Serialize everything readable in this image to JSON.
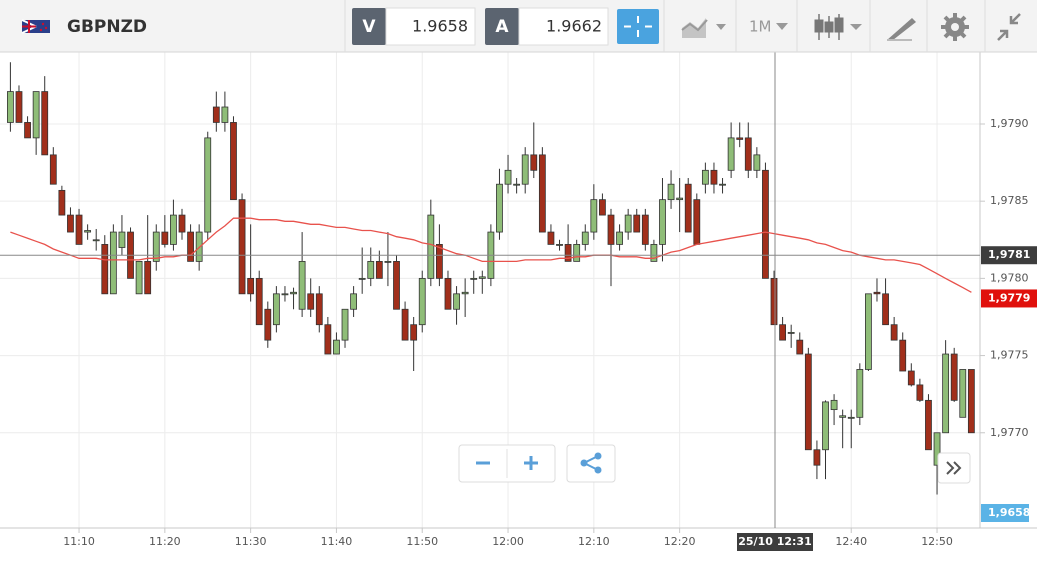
{
  "toolbar": {
    "symbol": "GBPNZD",
    "bid_label": "V",
    "bid": 1.9658,
    "ask_label": "A",
    "ask": 1.9662,
    "timeframe": "1M"
  },
  "chart_data": {
    "type": "candlestick",
    "categories": [
      null,
      null,
      null,
      null,
      null,
      null,
      null,
      null,
      "11:10",
      null,
      null,
      null,
      null,
      null,
      null,
      null,
      null,
      null,
      "11:20",
      null,
      null,
      null,
      null,
      null,
      null,
      null,
      null,
      null,
      "11:30",
      null,
      null,
      null,
      null,
      null,
      null,
      null,
      null,
      null,
      "11:40",
      null,
      null,
      null,
      null,
      null,
      null,
      null,
      null,
      null,
      "11:50",
      null,
      null,
      null,
      null,
      null,
      null,
      null,
      null,
      null,
      "12:00",
      null,
      null,
      null,
      null,
      null,
      null,
      null,
      null,
      null,
      "12:10",
      null,
      null,
      null,
      null,
      null,
      null,
      null,
      null,
      null,
      "12:20",
      null,
      null,
      null,
      null,
      null,
      null,
      null,
      null,
      null,
      null,
      null,
      null,
      null,
      null,
      null,
      null,
      null,
      null,
      null,
      "12:40",
      null,
      null,
      null,
      null,
      null,
      null,
      null,
      null,
      null,
      "12:50",
      null,
      null,
      null,
      null
    ],
    "open": [
      1.97901,
      1.97921,
      1.97901,
      1.97891,
      1.97921,
      1.9788,
      1.97857,
      1.97841,
      1.97841,
      1.9783,
      1.97825,
      1.97822,
      1.9779,
      1.9782,
      1.9783,
      1.9779,
      1.97811,
      1.97811,
      1.9783,
      1.97822,
      1.97841,
      1.9783,
      1.97811,
      1.9783,
      1.97911,
      1.97901,
      1.97901,
      1.97851,
      1.978,
      1.978,
      1.9778,
      1.9777,
      1.9779,
      1.9779,
      1.9778,
      1.9779,
      1.9779,
      1.9777,
      1.97751,
      1.9776,
      1.9778,
      1.978,
      1.978,
      1.97811,
      1.97811,
      1.97811,
      1.9778,
      1.9777,
      1.9777,
      1.978,
      1.97822,
      1.978,
      1.9778,
      1.9779,
      1.978,
      1.978,
      1.978,
      1.9783,
      1.97861,
      1.97861,
      1.97861,
      1.9788,
      1.9788,
      1.9783,
      1.97822,
      1.97822,
      1.97811,
      1.97822,
      1.9783,
      1.97851,
      1.97841,
      1.97822,
      1.9783,
      1.97841,
      1.97841,
      1.97811,
      1.97822,
      1.97851,
      1.97851,
      1.97861,
      1.97851,
      1.97861,
      1.9787,
      1.97861,
      1.9787,
      1.97891,
      1.97891,
      1.9787,
      1.9787,
      1.978,
      1.9777,
      1.97765,
      1.9776,
      1.97751,
      1.97689,
      1.97689,
      1.97715,
      1.9771,
      1.9771,
      1.9771,
      1.97741,
      1.97791,
      1.9779,
      1.9777,
      1.9776,
      1.9774,
      1.97731,
      1.97721,
      1.97679,
      1.977,
      1.97751,
      1.9771,
      1.97741
    ],
    "high": [
      1.9794,
      1.97925,
      1.97905,
      1.97921,
      1.97931,
      1.97885,
      1.9786,
      1.97846,
      1.97845,
      1.97835,
      1.97832,
      1.97828,
      1.97835,
      1.97841,
      1.97833,
      1.97811,
      1.97841,
      1.97835,
      1.97841,
      1.97851,
      1.97845,
      1.97835,
      1.97835,
      1.97895,
      1.97921,
      1.97921,
      1.97905,
      1.97855,
      1.97835,
      1.97805,
      1.97785,
      1.97795,
      1.97795,
      1.97794,
      1.9783,
      1.978,
      1.97795,
      1.97775,
      1.97765,
      1.9778,
      1.97795,
      1.9782,
      1.9782,
      1.97818,
      1.9783,
      1.97815,
      1.97785,
      1.97775,
      1.97805,
      1.97851,
      1.97835,
      1.97805,
      1.97795,
      1.978,
      1.97805,
      1.97805,
      1.97835,
      1.97871,
      1.9788,
      1.97865,
      1.97885,
      1.97901,
      1.97885,
      1.97835,
      1.97825,
      1.97835,
      1.97825,
      1.97835,
      1.97861,
      1.97855,
      1.97845,
      1.97835,
      1.97845,
      1.97845,
      1.97845,
      1.97825,
      1.97865,
      1.9787,
      1.97865,
      1.97865,
      1.97855,
      1.97875,
      1.97875,
      1.97865,
      1.97901,
      1.97901,
      1.97901,
      1.97885,
      1.97875,
      1.97805,
      1.97775,
      1.9777,
      1.97765,
      1.97755,
      1.97695,
      1.97721,
      1.97725,
      1.97715,
      1.97715,
      1.97745,
      1.9779,
      1.978,
      1.978,
      1.97775,
      1.97765,
      1.97745,
      1.97735,
      1.97725,
      1.977,
      1.9776,
      1.97755,
      1.97741,
      1.97741
    ],
    "low": [
      1.97895,
      1.97901,
      1.97891,
      1.9788,
      1.9788,
      1.97861,
      1.97841,
      1.9783,
      1.97822,
      1.97825,
      1.97818,
      1.9779,
      1.9779,
      1.97815,
      1.978,
      1.9779,
      1.9779,
      1.97805,
      1.9782,
      1.97818,
      1.97825,
      1.97811,
      1.97805,
      1.97825,
      1.97895,
      1.97895,
      1.97851,
      1.9779,
      1.97785,
      1.9777,
      1.97755,
      1.97765,
      1.97785,
      1.9778,
      1.97775,
      1.97775,
      1.97765,
      1.97751,
      1.97751,
      1.97755,
      1.97775,
      1.9779,
      1.97795,
      1.978,
      1.97795,
      1.9778,
      1.9776,
      1.9774,
      1.97765,
      1.97795,
      1.97795,
      1.9778,
      1.9777,
      1.97775,
      1.9779,
      1.9779,
      1.97795,
      1.97825,
      1.97855,
      1.97855,
      1.97855,
      1.97865,
      1.9783,
      1.97822,
      1.97818,
      1.97811,
      1.97811,
      1.97818,
      1.97825,
      1.97841,
      1.97795,
      1.97818,
      1.97825,
      1.9783,
      1.97818,
      1.97811,
      1.97811,
      1.97845,
      1.9783,
      1.9783,
      1.97822,
      1.97855,
      1.97855,
      1.97855,
      1.97865,
      1.97885,
      1.97865,
      1.97865,
      1.978,
      1.9777,
      1.9776,
      1.97755,
      1.97751,
      1.97689,
      1.9767,
      1.9767,
      1.97705,
      1.9769,
      1.9769,
      1.97705,
      1.9774,
      1.97785,
      1.9777,
      1.9776,
      1.9774,
      1.9773,
      1.9772,
      1.97689,
      1.9766,
      1.977,
      1.9772,
      1.9771,
      1.977
    ],
    "close": [
      1.97921,
      1.97901,
      1.97891,
      1.97921,
      1.9788,
      1.97861,
      1.97841,
      1.9783,
      1.97822,
      1.97831,
      1.97825,
      1.9779,
      1.9783,
      1.9783,
      1.978,
      1.97811,
      1.9779,
      1.9783,
      1.97822,
      1.97841,
      1.9783,
      1.97811,
      1.9783,
      1.97891,
      1.97901,
      1.97911,
      1.97851,
      1.9779,
      1.9779,
      1.9777,
      1.9776,
      1.9779,
      1.9779,
      1.97791,
      1.97811,
      1.9778,
      1.9777,
      1.97751,
      1.9776,
      1.9778,
      1.9779,
      1.978,
      1.97811,
      1.978,
      1.97811,
      1.9778,
      1.9776,
      1.9776,
      1.978,
      1.97841,
      1.978,
      1.9778,
      1.9779,
      1.97791,
      1.978,
      1.97801,
      1.9783,
      1.97861,
      1.9787,
      1.97861,
      1.9788,
      1.9787,
      1.9783,
      1.97822,
      1.97822,
      1.97811,
      1.97822,
      1.9783,
      1.97851,
      1.97841,
      1.97822,
      1.9783,
      1.97841,
      1.9783,
      1.97822,
      1.97822,
      1.97851,
      1.97861,
      1.97852,
      1.9783,
      1.97822,
      1.9787,
      1.97861,
      1.97861,
      1.97891,
      1.9789,
      1.9787,
      1.9788,
      1.978,
      1.9777,
      1.9776,
      1.97765,
      1.97751,
      1.97689,
      1.97679,
      1.9772,
      1.97721,
      1.97711,
      1.9771,
      1.97741,
      1.9779,
      1.9779,
      1.9777,
      1.9776,
      1.9774,
      1.97731,
      1.97721,
      1.97689,
      1.977,
      1.97751,
      1.97721,
      1.97741,
      1.977
    ],
    "up_color": "#8fbd78",
    "down_color": "#a12f1b",
    "lines": [
      {
        "color": "#e8524c",
        "values": [
          1.9783,
          1.97828,
          1.97826,
          1.97824,
          1.97822,
          1.97819,
          1.97817,
          1.97815,
          1.97813,
          1.97813,
          1.97813,
          1.97812,
          1.97812,
          1.97812,
          1.97812,
          1.97812,
          1.97813,
          1.97813,
          1.97814,
          1.97814,
          1.97815,
          1.97815,
          1.9782,
          1.97825,
          1.9783,
          1.97834,
          1.97839,
          1.97839,
          1.97839,
          1.97838,
          1.97838,
          1.97838,
          1.97837,
          1.97837,
          1.97836,
          1.97835,
          1.97835,
          1.97834,
          1.97833,
          1.97833,
          1.97832,
          1.97831,
          1.97831,
          1.9783,
          1.97829,
          1.97827,
          1.97826,
          1.97825,
          1.97823,
          1.97822,
          1.9782,
          1.97818,
          1.97816,
          1.97815,
          1.97813,
          1.97811,
          1.97811,
          1.97811,
          1.97811,
          1.97811,
          1.97812,
          1.97812,
          1.97812,
          1.97812,
          1.97813,
          1.97813,
          1.97814,
          1.97814,
          1.97815,
          1.97815,
          1.97815,
          1.97814,
          1.97814,
          1.97814,
          1.97813,
          1.97813,
          1.97815,
          1.97817,
          1.97818,
          1.9782,
          1.97822,
          1.97823,
          1.97824,
          1.97825,
          1.97826,
          1.97827,
          1.97828,
          1.97829,
          1.9783,
          1.97829,
          1.97828,
          1.97827,
          1.97826,
          1.97825,
          1.97823,
          1.97822,
          1.9782,
          1.97818,
          1.97817,
          1.97815,
          1.97814,
          1.97813,
          1.97812,
          1.97812,
          1.97811,
          1.9781,
          1.97809,
          1.97806,
          1.97803,
          1.978,
          1.97797,
          1.97794,
          1.97791
        ]
      }
    ],
    "ylim": [
      1.9764,
      1.9795
    ],
    "yticks": [
      {
        "value": 1.977,
        "label": "1,9770"
      },
      {
        "value": 1.9775,
        "label": "1,9775"
      },
      {
        "value": 1.978,
        "label": "1,9780"
      },
      {
        "value": 1.9785,
        "label": "1,9785"
      },
      {
        "value": 1.979,
        "label": "1,9790"
      }
    ],
    "grid": true,
    "crosshair": {
      "value": 1.97815,
      "label": "1,9781",
      "time_label": "25/10 12:31"
    },
    "last_price": {
      "value": 1.97787,
      "label": "1,9779",
      "color": "#e0100c"
    },
    "bid_marker": "1,9658"
  }
}
